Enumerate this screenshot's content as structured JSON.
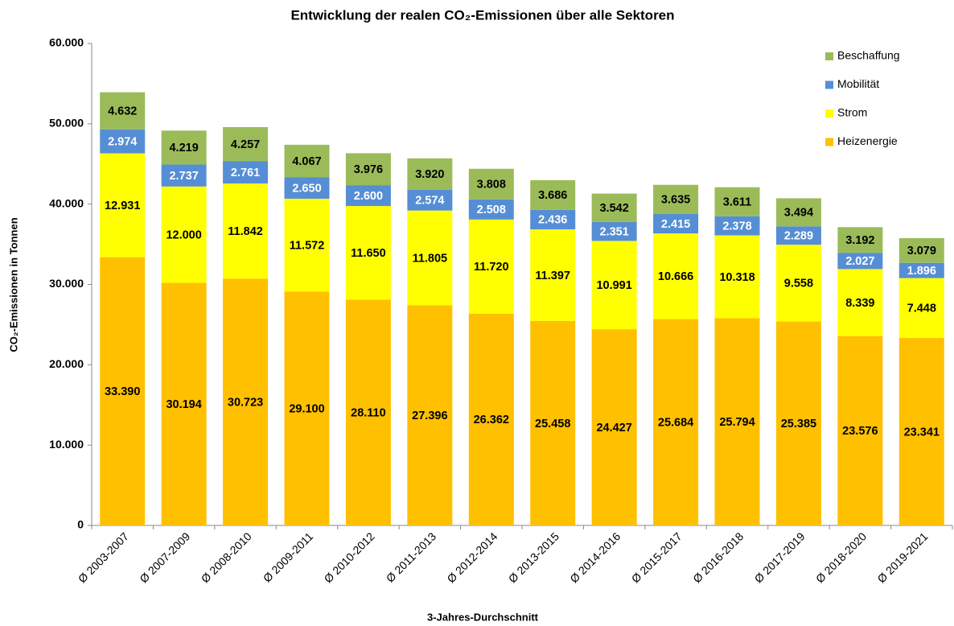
{
  "chart_data": {
    "type": "stacked_bar",
    "title": "Entwicklung der realen CO₂-Emissionen über alle Sektoren",
    "x_label": "3-Jahres-Durchschnitt",
    "y_label": "CO₂-Emissionen in Tonnen",
    "categories": [
      "Ø 2003-2007",
      "Ø 2007-2009",
      "Ø 2008-2010",
      "Ø 2009-2011",
      "Ø 2010-2012",
      "Ø 2011-2013",
      "Ø 2012-2014",
      "Ø 2013-2015",
      "Ø 2014-2016",
      "Ø 2015-2017",
      "Ø 2016-2018",
      "Ø 2017-2019",
      "Ø 2018-2020",
      "Ø 2019-2021"
    ],
    "series": [
      {
        "name": "Heizenergie",
        "color": "#ffc000",
        "label_color": "#000000",
        "values": [
          33390,
          30194,
          30723,
          29100,
          28110,
          27396,
          26362,
          25458,
          24427,
          25684,
          25794,
          25385,
          23576,
          23341
        ],
        "value_labels": [
          "33.390",
          "30.194",
          "30.723",
          "29.100",
          "28.110",
          "27.396",
          "26.362",
          "25.458",
          "24.427",
          "25.684",
          "25.794",
          "25.385",
          "23.576",
          "23.341"
        ]
      },
      {
        "name": "Strom",
        "color": "#ffff00",
        "label_color": "#000000",
        "values": [
          12931,
          12000,
          11842,
          11572,
          11650,
          11805,
          11720,
          11397,
          10991,
          10666,
          10318,
          9558,
          8339,
          7448
        ],
        "value_labels": [
          "12.931",
          "12.000",
          "11.842",
          "11.572",
          "11.650",
          "11.805",
          "11.720",
          "11.397",
          "10.991",
          "10.666",
          "10.318",
          "9.558",
          "8.339",
          "7.448"
        ]
      },
      {
        "name": "Mobilität",
        "color": "#558ed5",
        "label_color": "#ffffff",
        "values": [
          2974,
          2737,
          2761,
          2650,
          2600,
          2574,
          2508,
          2436,
          2351,
          2415,
          2378,
          2289,
          2027,
          1896
        ],
        "value_labels": [
          "2.974",
          "2.737",
          "2.761",
          "2.650",
          "2.600",
          "2.574",
          "2.508",
          "2.436",
          "2.351",
          "2.415",
          "2.378",
          "2.289",
          "2.027",
          "1.896"
        ]
      },
      {
        "name": "Beschaffung",
        "color": "#9bbb59",
        "label_color": "#000000",
        "values": [
          4632,
          4219,
          4257,
          4067,
          3976,
          3920,
          3808,
          3686,
          3542,
          3635,
          3611,
          3494,
          3192,
          3079
        ],
        "value_labels": [
          "4.632",
          "4.219",
          "4.257",
          "4.067",
          "3.976",
          "3.920",
          "3.808",
          "3.686",
          "3.542",
          "3.635",
          "3.611",
          "3.494",
          "3.192",
          "3.079"
        ]
      }
    ],
    "ylim": [
      0,
      60000
    ],
    "yticks": [
      0,
      {
        "value": 10000,
        "label": "10.000"
      },
      {
        "value": 20000,
        "label": "20.000"
      },
      {
        "value": 30000,
        "label": "30.000"
      },
      {
        "value": 40000,
        "label": "40.000"
      },
      {
        "value": 50000,
        "label": "50.000"
      },
      {
        "value": 60000,
        "label": "60.000"
      }
    ],
    "grid": false,
    "legend": "upper right"
  }
}
